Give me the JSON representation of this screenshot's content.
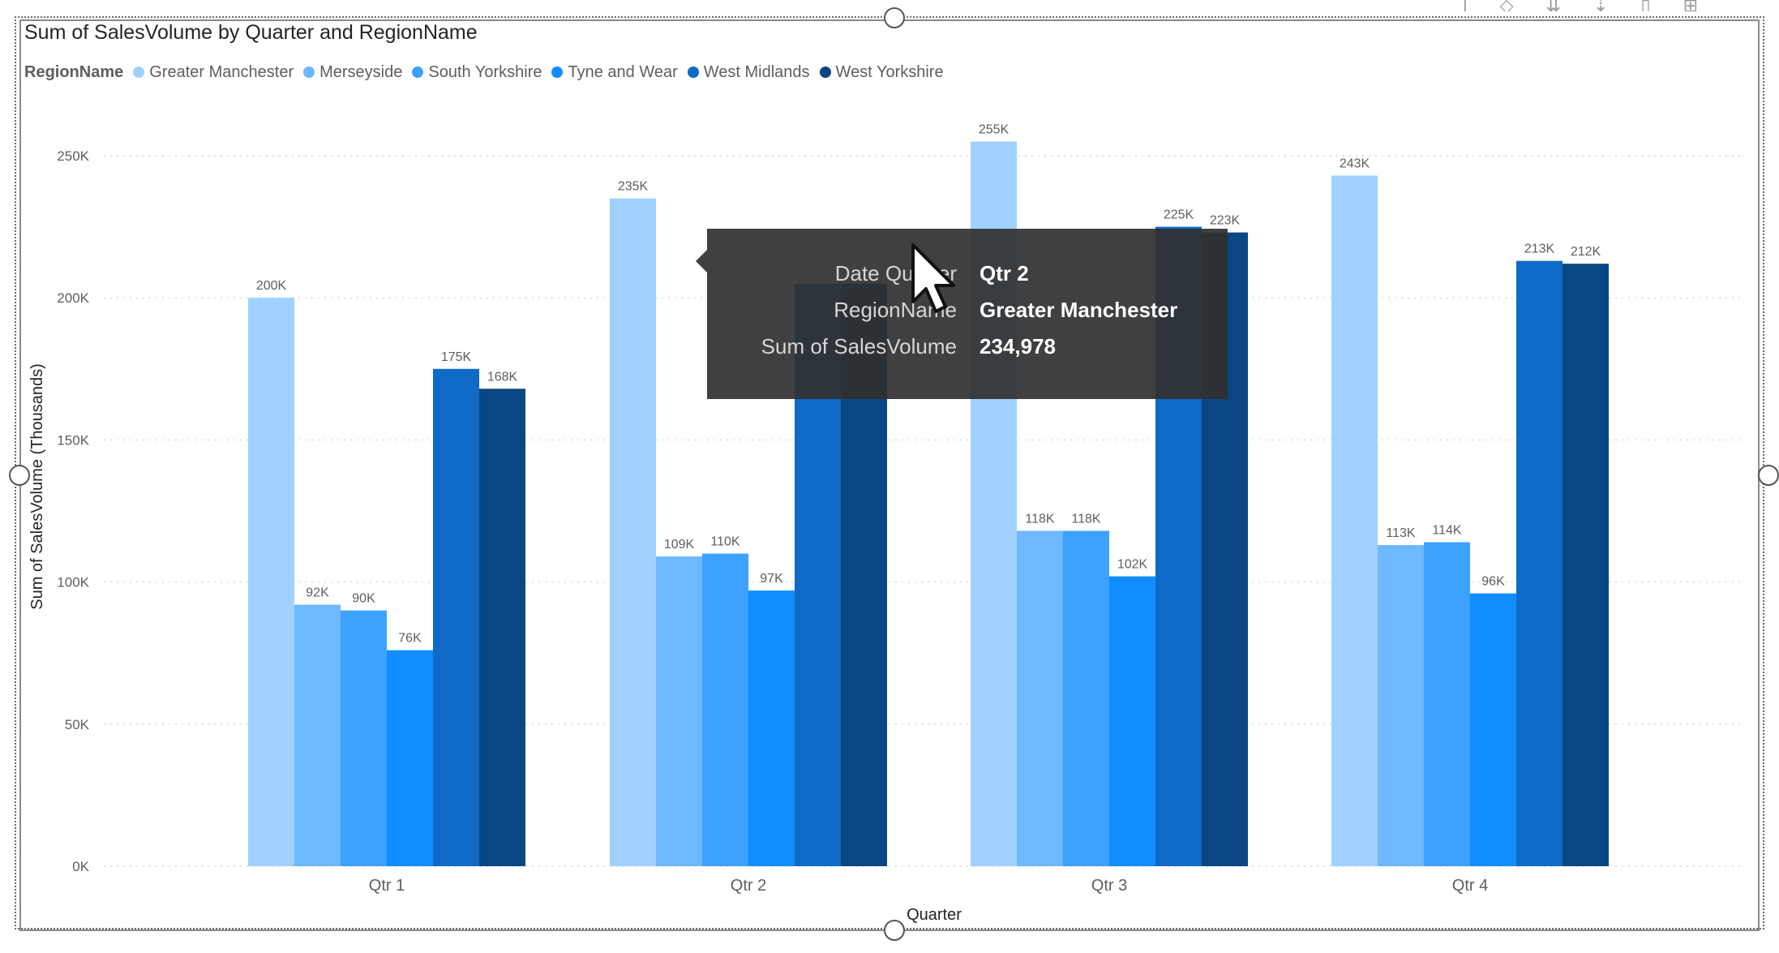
{
  "chart_data": {
    "type": "bar",
    "title": "Sum of SalesVolume by Quarter and RegionName",
    "xlabel": "Quarter",
    "ylabel": "Sum of SalesVolume (Thousands)",
    "ylim": [
      0,
      250000
    ],
    "yticks": [
      "0K",
      "50K",
      "100K",
      "150K",
      "200K",
      "250K"
    ],
    "grid": true,
    "legend_title": "RegionName",
    "legend_position": "top-left",
    "categories": [
      "Qtr 1",
      "Qtr 2",
      "Qtr 3",
      "Qtr 4"
    ],
    "series": [
      {
        "name": "Greater Manchester",
        "color": "#A0D1FF",
        "values": [
          200000,
          234978,
          255000,
          243000
        ],
        "labels": [
          "200K",
          "235K",
          "255K",
          "243K"
        ]
      },
      {
        "name": "Merseyside",
        "color": "#6DB8FF",
        "values": [
          92000,
          109000,
          118000,
          113000
        ],
        "labels": [
          "92K",
          "109K",
          "118K",
          "113K"
        ]
      },
      {
        "name": "South Yorkshire",
        "color": "#3DA1FF",
        "values": [
          90000,
          110000,
          118000,
          114000
        ],
        "labels": [
          "90K",
          "110K",
          "118K",
          "114K"
        ]
      },
      {
        "name": "Tyne and Wear",
        "color": "#118DFF",
        "values": [
          76000,
          97000,
          102000,
          96000
        ],
        "labels": [
          "76K",
          "97K",
          "102K",
          "96K"
        ]
      },
      {
        "name": "West Midlands",
        "color": "#0F6AC7",
        "values": [
          175000,
          205000,
          225000,
          213000
        ],
        "labels": [
          "175K",
          "",
          "225K",
          "213K"
        ]
      },
      {
        "name": "West Yorkshire",
        "color": "#0A4683",
        "values": [
          168000,
          205000,
          223000,
          212000
        ],
        "labels": [
          "168K",
          "",
          "223K",
          "212K"
        ]
      }
    ]
  },
  "tooltip": {
    "rows": [
      {
        "key": "Date Quarter",
        "value": "Qtr 2"
      },
      {
        "key": "RegionName",
        "value": "Greater Manchester"
      },
      {
        "key": "Sum of SalesVolume",
        "value": "234,978"
      }
    ]
  },
  "toolbar": {
    "icons": [
      "pin-icon",
      "filter-icon",
      "drill-down-icon",
      "expand-all-icon",
      "focus-mode-icon",
      "more-options-icon"
    ]
  }
}
